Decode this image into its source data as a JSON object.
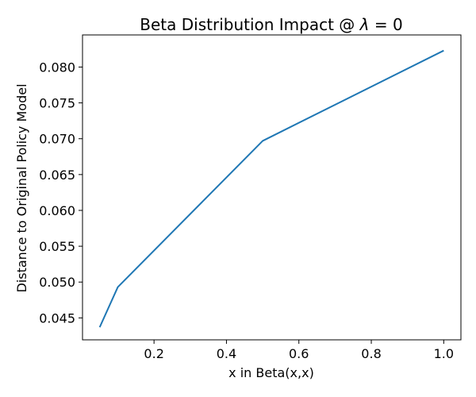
{
  "chart_data": {
    "type": "line",
    "title": "Beta Distribution Impact @ λ = 0",
    "title_main": "Beta Distribution Impact @ ",
    "title_lambda": "λ",
    "title_rest": " = 0",
    "xlabel": "x in Beta(x,x)",
    "ylabel": "Distance to Original Policy Model",
    "xlim": [
      0.0025,
      1.0475
    ],
    "ylim": [
      0.04194,
      0.08448
    ],
    "x_ticks": [
      0.2,
      0.4,
      0.6,
      0.8,
      1.0
    ],
    "x_tick_labels": [
      "0.2",
      "0.4",
      "0.6",
      "0.8",
      "1.0"
    ],
    "y_ticks": [
      0.045,
      0.05,
      0.055,
      0.06,
      0.065,
      0.07,
      0.075,
      0.08
    ],
    "y_tick_labels": [
      "0.045",
      "0.050",
      "0.055",
      "0.060",
      "0.065",
      "0.070",
      "0.075",
      "0.080"
    ],
    "grid": false,
    "legend": "none",
    "series": [
      {
        "x": [
          0.05,
          0.1,
          0.5,
          1.0
        ],
        "y": [
          0.0437,
          0.0493,
          0.0697,
          0.0823
        ],
        "color": "#1f77b4"
      }
    ]
  }
}
